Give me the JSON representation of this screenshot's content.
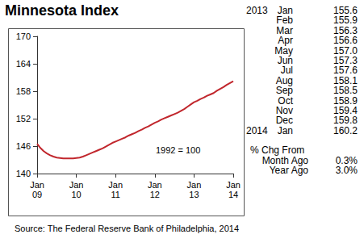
{
  "chart_data": {
    "type": "line",
    "title": "Minnesota Index",
    "annotations": [
      "1992 = 100"
    ],
    "source": "Source: The Federal Reserve Bank of Philadelphia, 2014",
    "categories": [
      "Jan 09",
      null,
      null,
      null,
      null,
      null,
      null,
      null,
      null,
      null,
      null,
      null,
      "Jan 10",
      null,
      null,
      null,
      null,
      null,
      null,
      null,
      null,
      null,
      null,
      null,
      "Jan 11",
      null,
      null,
      null,
      null,
      null,
      null,
      null,
      null,
      null,
      null,
      null,
      "Jan 12",
      null,
      null,
      null,
      null,
      null,
      null,
      null,
      null,
      null,
      null,
      null,
      "Jan 13",
      null,
      null,
      null,
      null,
      null,
      null,
      null,
      null,
      null,
      null,
      null,
      "Jan 14"
    ],
    "values": [
      146.5,
      145.6,
      144.9,
      144.4,
      144.0,
      143.7,
      143.5,
      143.4,
      143.3,
      143.3,
      143.3,
      143.3,
      143.4,
      143.5,
      143.7,
      144.0,
      144.3,
      144.6,
      144.9,
      145.2,
      145.5,
      145.9,
      146.3,
      146.7,
      147.0,
      147.3,
      147.6,
      147.9,
      148.3,
      148.6,
      148.9,
      149.3,
      149.6,
      150.0,
      150.3,
      150.7,
      151.1,
      151.4,
      151.8,
      152.1,
      152.4,
      152.7,
      153.0,
      153.3,
      153.7,
      154.1,
      154.6,
      155.1,
      155.6,
      155.9,
      156.3,
      156.6,
      157.0,
      157.3,
      157.6,
      158.1,
      158.5,
      158.9,
      159.4,
      159.8,
      160.2
    ],
    "color": "#c1272d",
    "ylim": [
      140,
      170
    ],
    "yticks": [
      140,
      146,
      152,
      158,
      164,
      170
    ],
    "grid": false
  },
  "side_table": {
    "rows": [
      {
        "year": "2013",
        "month": "Jan",
        "value": "155.6"
      },
      {
        "month": "Feb",
        "value": "155.9"
      },
      {
        "month": "Mar",
        "value": "156.3"
      },
      {
        "month": "Apr",
        "value": "156.6"
      },
      {
        "month": "May",
        "value": "157.0"
      },
      {
        "month": "Jun",
        "value": "157.3"
      },
      {
        "month": "Jul",
        "value": "157.6"
      },
      {
        "month": "Aug",
        "value": "158.1"
      },
      {
        "month": "Sep",
        "value": "158.5"
      },
      {
        "month": "Oct",
        "value": "158.9"
      },
      {
        "month": "Nov",
        "value": "159.4"
      },
      {
        "month": "Dec",
        "value": "159.8"
      },
      {
        "year": "2014",
        "month": "Jan",
        "value": "160.2"
      }
    ],
    "change": {
      "heading": "% Chg From",
      "rows": [
        {
          "label": "Month Ago",
          "value": "0.3%"
        },
        {
          "label": "Year Ago",
          "value": "3.0%"
        }
      ]
    }
  }
}
